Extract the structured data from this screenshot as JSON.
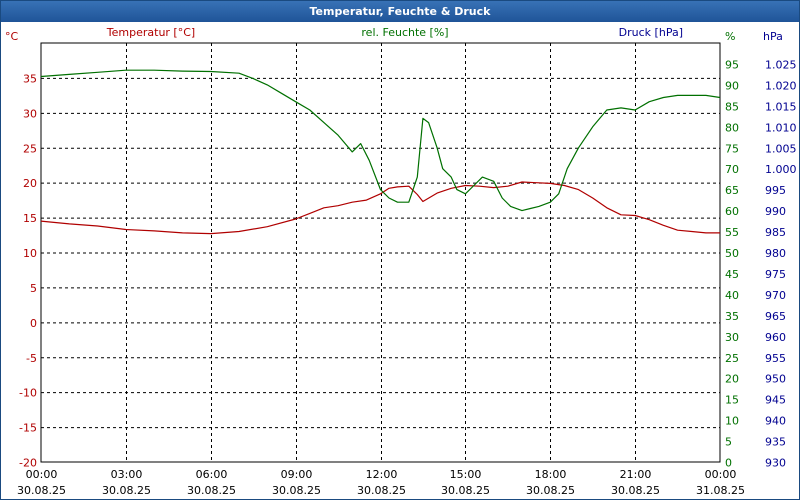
{
  "window": {
    "title": "Temperatur, Feuchte & Druck"
  },
  "colors": {
    "temperature": "#b00000",
    "humidity": "#007000",
    "pressure": "#000090",
    "grid": "#000000",
    "titlebar": "#2a60a8"
  },
  "chart_data": {
    "type": "line",
    "title": "Temperatur, Feuchte & Druck",
    "grid": true,
    "axes": {
      "left": {
        "label": "Temperatur [°C]",
        "unit": "°C",
        "ylim": [
          -20,
          40
        ],
        "ticks": [
          -20,
          -15,
          -10,
          -5,
          0,
          5,
          10,
          15,
          20,
          25,
          30,
          35
        ]
      },
      "right1": {
        "label": "rel. Feuchte [%]",
        "unit": "%",
        "ylim": [
          0,
          100
        ],
        "ticks": [
          0,
          5,
          10,
          15,
          20,
          25,
          30,
          35,
          40,
          45,
          50,
          55,
          60,
          65,
          70,
          75,
          80,
          85,
          90,
          95
        ]
      },
      "right2": {
        "label": "Druck [hPa]",
        "unit": "hPa",
        "ylim": [
          930,
          1030
        ],
        "ticks": [
          "930",
          "935",
          "940",
          "945",
          "950",
          "955",
          "960",
          "965",
          "970",
          "975",
          "980",
          "985",
          "990",
          "995",
          "1.000",
          "1.005",
          "1.010",
          "1.015",
          "1.020",
          "1.025"
        ]
      }
    },
    "x_ticks": [
      {
        "time": "00:00",
        "date": "30.08.25"
      },
      {
        "time": "03:00",
        "date": "30.08.25"
      },
      {
        "time": "06:00",
        "date": "30.08.25"
      },
      {
        "time": "09:00",
        "date": "30.08.25"
      },
      {
        "time": "12:00",
        "date": "30.08.25"
      },
      {
        "time": "15:00",
        "date": "30.08.25"
      },
      {
        "time": "18:00",
        "date": "30.08.25"
      },
      {
        "time": "21:00",
        "date": "30.08.25"
      },
      {
        "time": "00:00",
        "date": "31.08.25"
      }
    ],
    "xlim_hours": [
      0,
      24
    ],
    "series": [
      {
        "name": "Temperatur [°C]",
        "axis": "left",
        "color": "#b00000",
        "x": [
          0,
          1,
          2,
          3,
          4,
          5,
          6,
          7,
          8,
          9,
          9.5,
          10,
          10.5,
          11,
          11.5,
          12,
          12.3,
          12.6,
          13,
          13.3,
          13.5,
          14,
          14.5,
          15,
          15.5,
          16,
          16.5,
          17,
          17.5,
          18,
          18.5,
          19,
          19.5,
          20,
          20.5,
          21,
          21.5,
          22,
          22.5,
          23,
          23.5,
          24
        ],
        "y": [
          14.5,
          14.1,
          13.8,
          13.3,
          13.1,
          12.8,
          12.7,
          13.0,
          13.7,
          14.8,
          15.6,
          16.4,
          16.7,
          17.2,
          17.5,
          18.4,
          19.2,
          19.4,
          19.5,
          18.3,
          17.3,
          18.5,
          19.2,
          19.6,
          19.5,
          19.3,
          19.5,
          20.1,
          20.0,
          19.9,
          19.6,
          19.0,
          17.8,
          16.4,
          15.4,
          15.3,
          14.7,
          13.9,
          13.2,
          13.0,
          12.8,
          12.8
        ]
      },
      {
        "name": "rel. Feuchte [%]",
        "axis": "right1",
        "color": "#007000",
        "x": [
          0,
          1,
          2,
          3,
          4,
          5,
          6,
          7,
          7.5,
          8,
          8.5,
          9,
          9.5,
          10,
          10.5,
          11,
          11.3,
          11.6,
          12,
          12.3,
          12.6,
          13,
          13.3,
          13.5,
          13.7,
          14,
          14.2,
          14.5,
          14.7,
          15,
          15.3,
          15.6,
          16,
          16.3,
          16.6,
          17,
          17.3,
          17.6,
          18,
          18.3,
          18.6,
          19,
          19.5,
          20,
          20.5,
          21,
          21.5,
          22,
          22.5,
          23,
          23.5,
          24
        ],
        "y": [
          92,
          92.5,
          93,
          93.5,
          93.5,
          93.3,
          93.2,
          92.8,
          91.5,
          90,
          88,
          86,
          84,
          81,
          78,
          74,
          76,
          72,
          65,
          63,
          62,
          62,
          68,
          82,
          81,
          75,
          70,
          68,
          65,
          64,
          66,
          68,
          67,
          63,
          61,
          60,
          60.5,
          61,
          62,
          64,
          70,
          75,
          80,
          84,
          84.5,
          84,
          86,
          87,
          87.5,
          87.5,
          87.5,
          87
        ]
      }
    ]
  }
}
